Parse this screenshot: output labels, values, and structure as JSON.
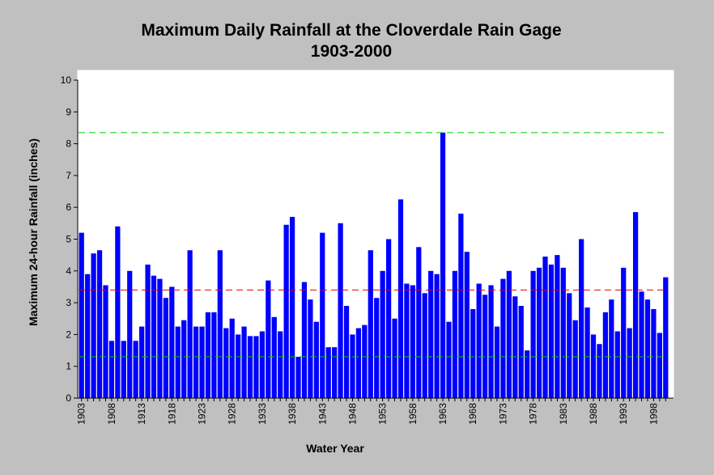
{
  "chart_data": {
    "type": "bar",
    "title": "Maximum Daily Rainfall at the Cloverdale Rain Gage",
    "subtitle": "1903-2000",
    "xlabel": "Water Year",
    "ylabel": "Maximum 24-hour Rainfall (inches)",
    "ylim": [
      0,
      10
    ],
    "yticks": [
      0,
      1,
      2,
      3,
      4,
      5,
      6,
      7,
      8,
      9,
      10
    ],
    "xtick_labels": [
      "1903",
      "1908",
      "1913",
      "1918",
      "1923",
      "1928",
      "1933",
      "1938",
      "1943",
      "1948",
      "1953",
      "1958",
      "1963",
      "1968",
      "1973",
      "1978",
      "1983",
      "1988",
      "1993",
      "1998"
    ],
    "grid": false,
    "bar_color": "#0000ff",
    "reference_lines": [
      {
        "value": 8.35,
        "color": "#00cc00"
      },
      {
        "value": 3.4,
        "color": "#e00000"
      },
      {
        "value": 1.3,
        "color": "#00cc00"
      }
    ],
    "x": [
      1903,
      1904,
      1905,
      1906,
      1907,
      1908,
      1909,
      1910,
      1911,
      1912,
      1913,
      1914,
      1915,
      1916,
      1917,
      1918,
      1919,
      1920,
      1921,
      1922,
      1923,
      1924,
      1925,
      1926,
      1927,
      1928,
      1929,
      1930,
      1931,
      1932,
      1933,
      1934,
      1935,
      1936,
      1937,
      1938,
      1939,
      1940,
      1941,
      1942,
      1943,
      1944,
      1945,
      1946,
      1947,
      1948,
      1949,
      1950,
      1951,
      1952,
      1953,
      1954,
      1955,
      1956,
      1957,
      1958,
      1959,
      1960,
      1961,
      1962,
      1963,
      1964,
      1965,
      1966,
      1967,
      1968,
      1969,
      1970,
      1971,
      1972,
      1973,
      1974,
      1975,
      1976,
      1977,
      1978,
      1979,
      1980,
      1981,
      1982,
      1983,
      1984,
      1985,
      1986,
      1987,
      1988,
      1989,
      1990,
      1991,
      1992,
      1993,
      1994,
      1995,
      1996,
      1997,
      1998,
      1999,
      2000
    ],
    "values": [
      5.2,
      3.9,
      4.55,
      4.65,
      3.55,
      1.8,
      5.4,
      1.8,
      4.0,
      1.8,
      2.25,
      4.2,
      3.85,
      3.75,
      3.15,
      3.5,
      2.25,
      2.45,
      4.65,
      2.25,
      2.25,
      2.7,
      2.7,
      4.65,
      2.2,
      2.5,
      2.0,
      2.25,
      1.95,
      1.95,
      2.1,
      3.7,
      2.55,
      2.1,
      5.45,
      5.7,
      1.3,
      3.65,
      3.1,
      2.4,
      5.2,
      1.6,
      1.6,
      5.5,
      2.9,
      2.0,
      2.2,
      2.3,
      4.65,
      3.15,
      4.0,
      5.0,
      2.5,
      6.25,
      3.6,
      3.55,
      4.75,
      3.3,
      4.0,
      3.9,
      8.35,
      2.4,
      4.0,
      5.8,
      4.6,
      2.8,
      3.6,
      3.25,
      3.55,
      2.25,
      3.75,
      4.0,
      3.2,
      2.9,
      1.5,
      4.0,
      4.1,
      4.45,
      4.2,
      4.5,
      4.1,
      3.3,
      2.45,
      5.0,
      2.85,
      2.0,
      1.7,
      2.7,
      3.1,
      2.1,
      4.1,
      2.2,
      5.85,
      3.35,
      3.1,
      2.8,
      2.05,
      3.8
    ]
  }
}
